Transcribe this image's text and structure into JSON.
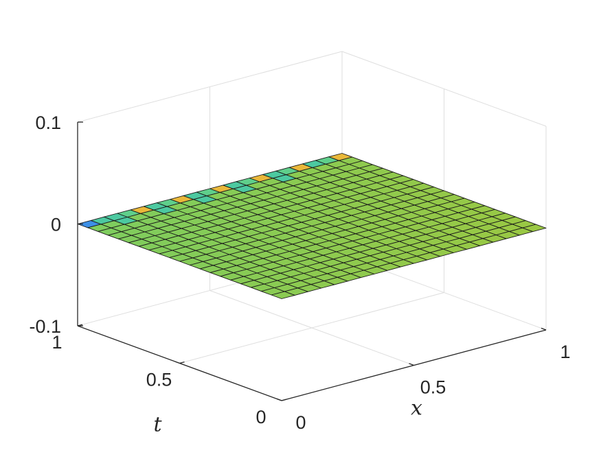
{
  "chart_data": {
    "type": "surface",
    "title": "",
    "xlabel": "x",
    "ylabel": "t",
    "zlabel": "",
    "xlim": [
      0,
      1
    ],
    "ylim": [
      0,
      1
    ],
    "zlim": [
      -0.1,
      0.1
    ],
    "grid": true,
    "colormap": "parula",
    "x_ticks": [
      {
        "value": 0,
        "label": "0"
      },
      {
        "value": 0.5,
        "label": "0.5"
      },
      {
        "value": 1,
        "label": "1"
      }
    ],
    "y_ticks": [
      {
        "value": 0,
        "label": "0"
      },
      {
        "value": 0.5,
        "label": "0.5"
      },
      {
        "value": 1,
        "label": "1"
      }
    ],
    "z_ticks": [
      {
        "value": -0.1,
        "label": "-0.1"
      },
      {
        "value": 0,
        "label": "0"
      },
      {
        "value": 0.1,
        "label": "0.1"
      }
    ],
    "grid_points": {
      "x_count": 21,
      "t_count": 21
    },
    "z_values": "approximately 0 over the whole domain",
    "cell_colors": {
      "default": "#9ac843",
      "edge_t1_x0": "#3c8fe6",
      "edge_t1_x1": "#5fcf8b",
      "edge_t1_hot": "#e9b83a",
      "edge_t1_cool": "#4cc9a0",
      "gradient_low_t": "#72cf6b"
    }
  }
}
